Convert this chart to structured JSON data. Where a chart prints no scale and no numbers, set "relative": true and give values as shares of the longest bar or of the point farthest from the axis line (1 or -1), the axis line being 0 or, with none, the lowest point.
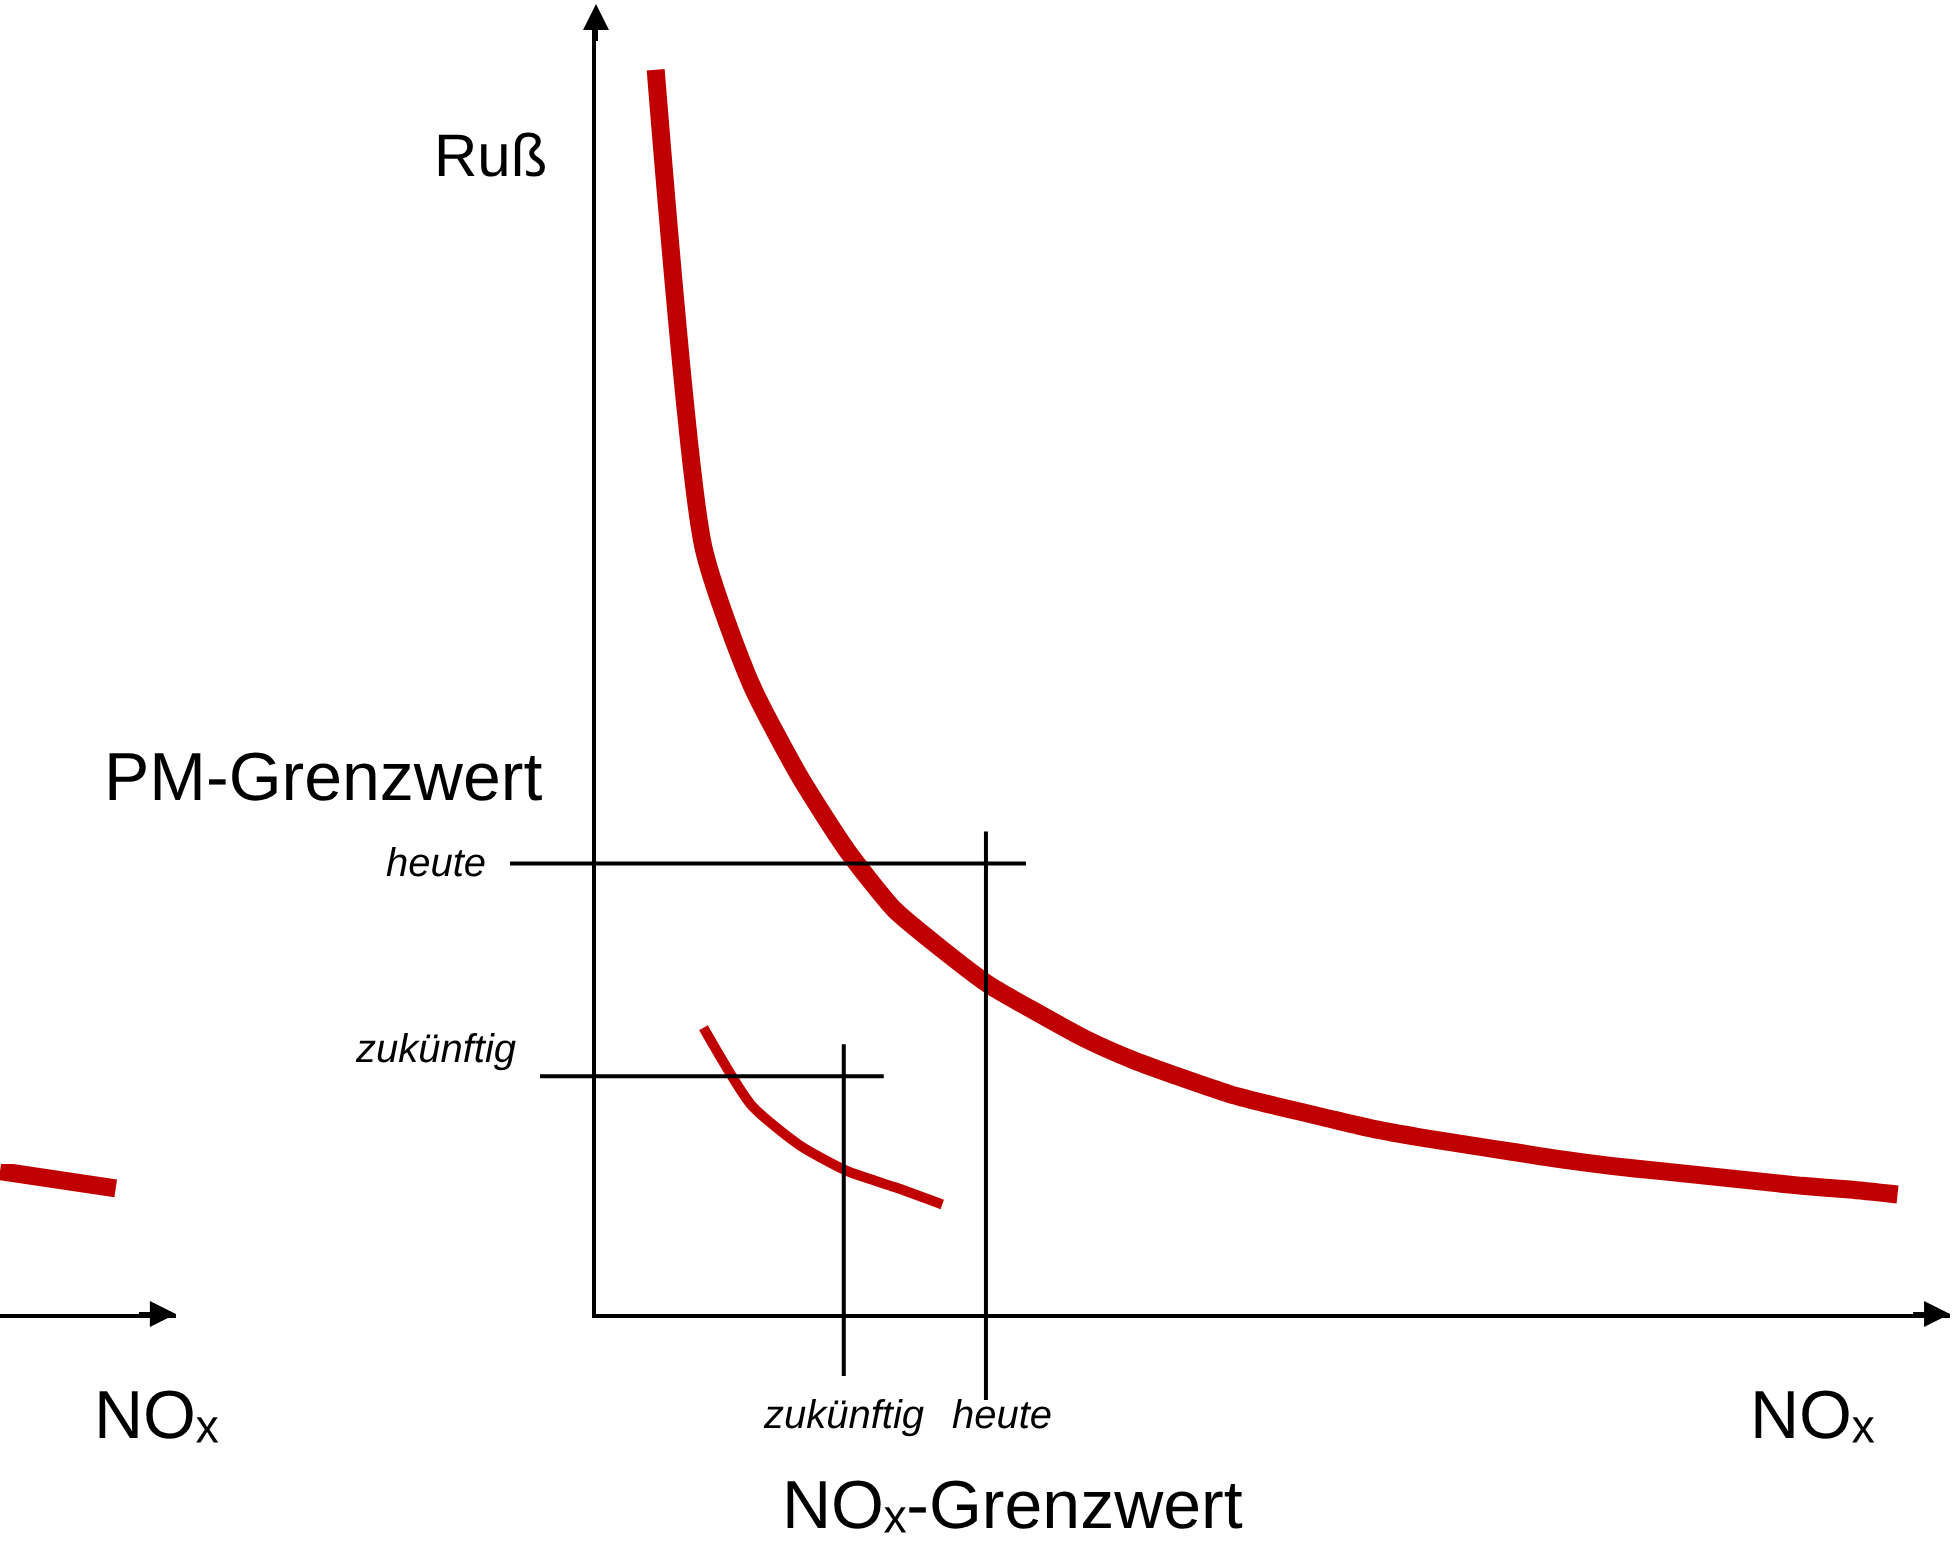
{
  "chart_data": [
    {
      "type": "line",
      "relative": true,
      "xlabel": "NOₓ",
      "categories": [
        null,
        null
      ],
      "series": [
        {
          "color": "#c00000",
          "values": [
            1,
            0.88
          ]
        }
      ]
    },
    {
      "type": "line",
      "relative": true,
      "ylabel": "Ruß",
      "xlabel": "NOₓ",
      "categories": [
        null,
        null,
        null,
        null,
        null,
        null,
        null,
        null,
        null,
        null,
        null,
        null,
        null,
        null,
        null,
        null,
        null,
        null,
        null,
        null,
        null,
        null,
        null,
        null,
        null,
        null,
        null,
        null
      ],
      "series": [
        {
          "color": "#c00000",
          "values": [
            null,
            1,
            0.616,
            0.506,
            0.433,
            0.373,
            0.325,
            0.293,
            0.264,
            0.242,
            0.221,
            0.204,
            0.19,
            0.177,
            0.167,
            0.158,
            0.149,
            0.142,
            0.136,
            0.13,
            0.124,
            0.119,
            0.115,
            0.111,
            0.107,
            0.103,
            0.1,
            0.096
          ]
        },
        {
          "color": "#c00000",
          "values": [
            null,
            null,
            0.23,
            0.168,
            0.136,
            0.115,
            0.102,
            0.088,
            null,
            null,
            null,
            null,
            null,
            null,
            null,
            null,
            null,
            null,
            null,
            null,
            null,
            null,
            null,
            null,
            null,
            null,
            null,
            null
          ]
        }
      ],
      "ref_lines": [
        {
          "axis": "y",
          "value": 0.362,
          "label": "heute",
          "color": "#000000"
        },
        {
          "axis": "y",
          "value": 0.191,
          "label": "zukünftig",
          "color": "#000000"
        }
      ],
      "annotations": [
        "PM-Grenzwert",
        "NOₓ-Grenzwert",
        "heute",
        "zukünftig"
      ]
    }
  ]
}
